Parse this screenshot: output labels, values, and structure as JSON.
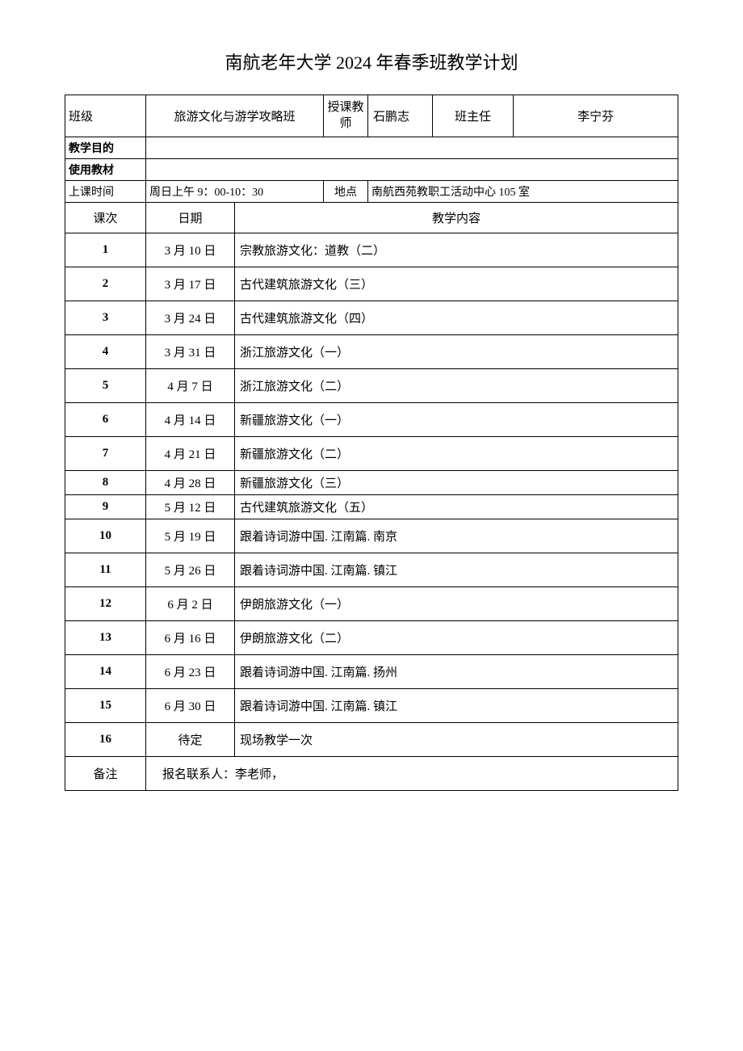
{
  "title": "南航老年大学 2024 年春季班教学计划",
  "info": {
    "class_label": "班级",
    "class_value": "旅游文化与游学攻略班",
    "teacher_label": "授课教师",
    "teacher_value": "石鹏志",
    "head_label": "班主任",
    "head_value": "李宁芬",
    "objective_label": "教学目的",
    "objective_value": "",
    "material_label": "使用教材",
    "material_value": "",
    "time_label": "上课时间",
    "time_value": "周日上午 9：00-10：30",
    "location_label": "地点",
    "location_value": "南航西苑教职工活动中心 105 室"
  },
  "schedule_header": {
    "session": "课次",
    "date": "日期",
    "content": "教学内容"
  },
  "sessions": [
    {
      "num": "1",
      "date": "3 月 10 日",
      "content": "宗教旅游文化：道教（二）",
      "tight": false
    },
    {
      "num": "2",
      "date": "3 月 17 日",
      "content": "古代建筑旅游文化（三）",
      "tight": false
    },
    {
      "num": "3",
      "date": "3 月 24 日",
      "content": "古代建筑旅游文化（四）",
      "tight": false
    },
    {
      "num": "4",
      "date": "3 月 31 日",
      "content": "浙江旅游文化（一）",
      "tight": false
    },
    {
      "num": "5",
      "date": "4 月 7 日",
      "content": "浙江旅游文化（二）",
      "tight": false
    },
    {
      "num": "6",
      "date": "4 月 14 日",
      "content": "新疆旅游文化（一）",
      "tight": false
    },
    {
      "num": "7",
      "date": "4 月 21 日",
      "content": "新疆旅游文化（二）",
      "tight": false
    },
    {
      "num": "8",
      "date": "4 月 28 日",
      "content": "新疆旅游文化（三）",
      "tight": true
    },
    {
      "num": "9",
      "date": "5 月 12 日",
      "content": "古代建筑旅游文化（五）",
      "tight": true
    },
    {
      "num": "10",
      "date": "5 月 19 日",
      "content": "跟着诗词游中国. 江南篇. 南京",
      "tight": false
    },
    {
      "num": "11",
      "date": "5 月 26 日",
      "content": "跟着诗词游中国. 江南篇. 镇江",
      "tight": false
    },
    {
      "num": "12",
      "date": "6 月 2 日",
      "content": "伊朗旅游文化（一）",
      "tight": false
    },
    {
      "num": "13",
      "date": "6 月 16 日",
      "content": "伊朗旅游文化（二）",
      "tight": false
    },
    {
      "num": "14",
      "date": "6 月 23 日",
      "content": "跟着诗词游中国. 江南篇. 扬州",
      "tight": false
    },
    {
      "num": "15",
      "date": "6 月 30 日",
      "content": "跟着诗词游中国. 江南篇. 镇江",
      "tight": false
    },
    {
      "num": "16",
      "date": "待定",
      "content": "现场教学一次",
      "tight": false
    }
  ],
  "remarks": {
    "label": "备注",
    "contact": "报名联系人：李老师，"
  }
}
